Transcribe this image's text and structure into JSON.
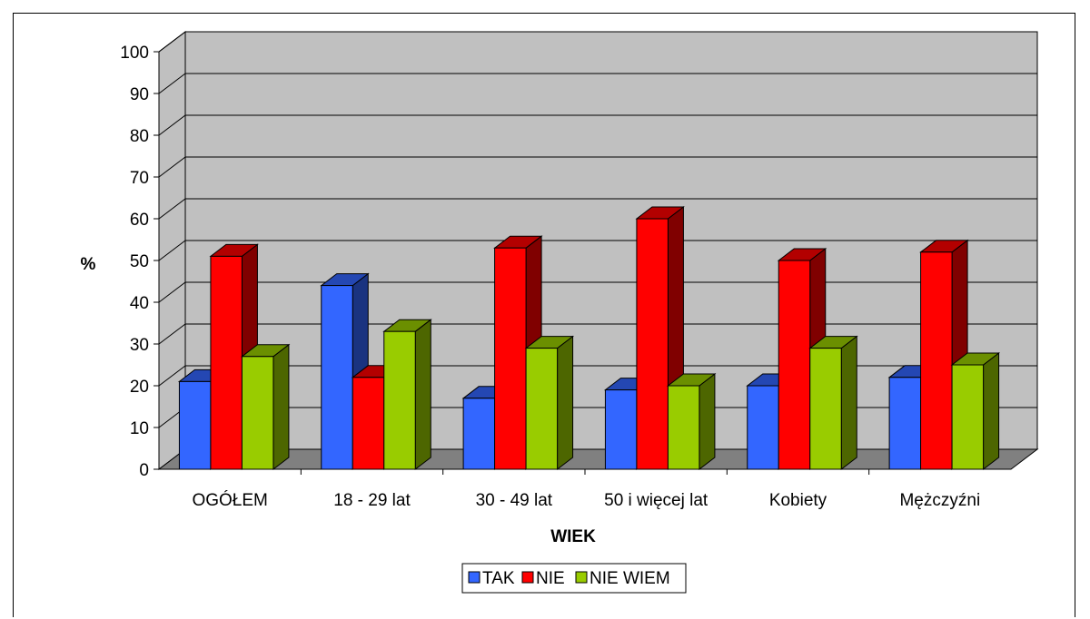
{
  "chart_data": {
    "type": "bar",
    "three_d": true,
    "categories": [
      "OGÓŁEM",
      "18 - 29 lat",
      "30 - 49 lat",
      "50 i więcej lat",
      "Kobiety",
      "Mężczyźni"
    ],
    "series": [
      {
        "name": "TAK",
        "values": [
          21,
          44,
          17,
          19,
          20,
          22
        ],
        "color": "#3366ff"
      },
      {
        "name": "NIE",
        "values": [
          51,
          22,
          53,
          60,
          50,
          52
        ],
        "color": "#ff0000"
      },
      {
        "name": "NIE WIEM",
        "values": [
          27,
          33,
          29,
          20,
          29,
          25
        ],
        "color": "#99cc00"
      }
    ],
    "xlabel": "WIEK",
    "ylabel": "%",
    "ylim": [
      0,
      100
    ],
    "yticks": [
      "0",
      "10",
      "20",
      "30",
      "40",
      "50",
      "60",
      "70",
      "80",
      "90",
      "100"
    ],
    "grid": true,
    "legend": "bottom",
    "colors": {
      "wall": "#c0c0c0",
      "floor": "#808080",
      "grid": "#000000"
    }
  }
}
